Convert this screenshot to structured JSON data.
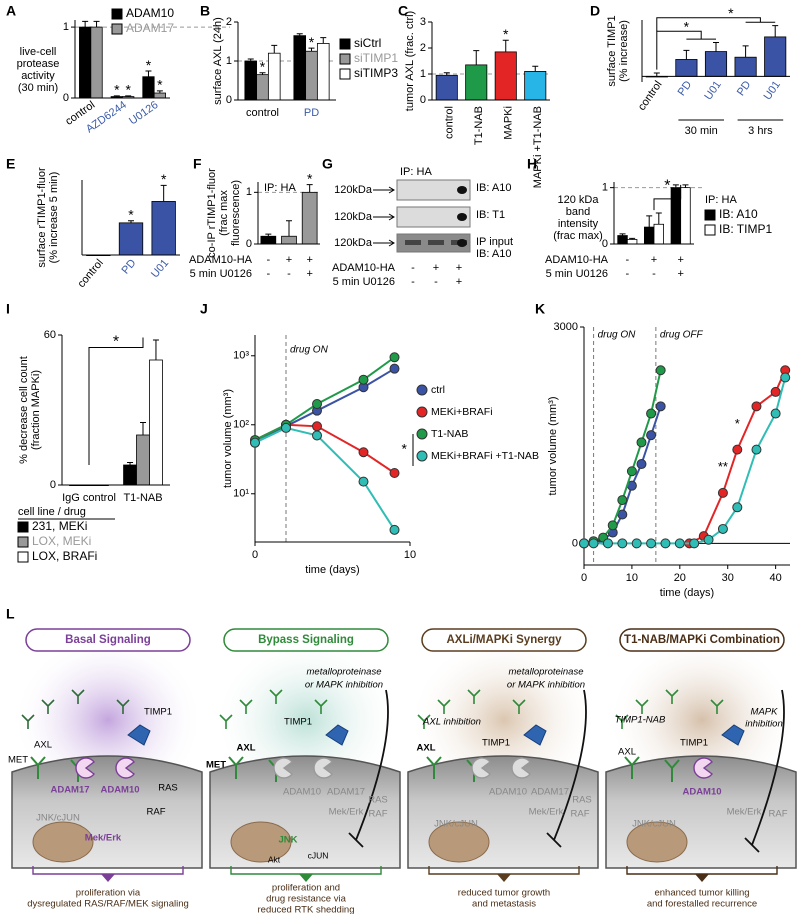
{
  "chart_data": [
    {
      "panel": "A",
      "type": "bar",
      "ylabel": [
        "live-cell",
        "protease",
        "activity",
        "(30 min)"
      ],
      "categories": [
        "control",
        "AZD6244",
        "U0126"
      ],
      "category_colors": [
        "#000000",
        "#3b5ba9",
        "#3b5ba9"
      ],
      "series": [
        {
          "name": "ADAM10",
          "color": "#000000",
          "values": [
            1,
            0.02,
            0.3
          ],
          "errors": [
            0.08,
            0.01,
            0.08
          ],
          "sig": [
            null,
            "*",
            "*"
          ]
        },
        {
          "name": "ADAM17",
          "color": "#999999",
          "values": [
            1,
            0.02,
            0.07
          ],
          "errors": [
            0.08,
            0.01,
            0.03
          ],
          "sig": [
            null,
            "*",
            "*"
          ]
        }
      ],
      "ylim": [
        0,
        1.1
      ],
      "yticks": [
        0,
        1
      ],
      "reference_line": 1
    },
    {
      "panel": "B",
      "type": "bar",
      "ylabel": [
        "surface AXL (24h)"
      ],
      "categories": [
        "control",
        "PD"
      ],
      "category_colors": [
        "#000000",
        "#3b5ba9"
      ],
      "series": [
        {
          "name": "siCtrl",
          "color": "#000000",
          "values": [
            1,
            1.65
          ],
          "errors": [
            0.05,
            0.05
          ]
        },
        {
          "name": "siTIMP1",
          "color": "#999999",
          "values": [
            0.65,
            1.25
          ],
          "errors": [
            0.05,
            0.08
          ],
          "sig": [
            "*",
            "*"
          ]
        },
        {
          "name": "siTIMP3",
          "color": "#ffffff",
          "values": [
            1.2,
            1.45
          ],
          "errors": [
            0.2,
            0.15
          ]
        }
      ],
      "ylim": [
        0,
        2
      ],
      "yticks": [
        0,
        1,
        2
      ],
      "reference_line": 1
    },
    {
      "panel": "C",
      "type": "bar",
      "ylabel": [
        "tumor AXL (frac. ctrl)"
      ],
      "categories": [
        "control",
        "T1-NAB",
        "MAPKi",
        "MAPKi +T1-NAB"
      ],
      "values": [
        0.95,
        1.35,
        1.85,
        1.1
      ],
      "errors": [
        0.1,
        0.55,
        0.45,
        0.2
      ],
      "sig": [
        null,
        null,
        "*",
        null
      ],
      "colors": [
        "#3a53a4",
        "#1f9a48",
        "#e32526",
        "#27b5e8"
      ],
      "ylim": [
        0,
        3
      ],
      "yticks": [
        0,
        1,
        2,
        3
      ],
      "reference_line": 1
    },
    {
      "panel": "D",
      "type": "bar",
      "ylabel": [
        "surface TIMP1",
        "(% increase)"
      ],
      "categories": [
        "control",
        "PD",
        "U01",
        "PD",
        "U01"
      ],
      "category_colors": [
        "#000000",
        "#3b5ba9",
        "#3b5ba9",
        "#3b5ba9",
        "#3b5ba9"
      ],
      "values": [
        0,
        15,
        22,
        17,
        35
      ],
      "errors": [
        3,
        8,
        8,
        10,
        10
      ],
      "colors": [
        "#3a53a4",
        "#3a53a4",
        "#3a53a4",
        "#3a53a4",
        "#3a53a4"
      ],
      "ylim": [
        -5,
        50
      ],
      "group_labels": [
        "30 min",
        "3 hrs"
      ],
      "annotations": [
        "*",
        "*"
      ]
    },
    {
      "panel": "E",
      "type": "bar",
      "ylabel": [
        "surface rTIMP1-fluor",
        "(% increase 5 min)"
      ],
      "categories": [
        "control",
        "PD",
        "U01"
      ],
      "category_colors": [
        "#000000",
        "#3b5ba9",
        "#3b5ba9"
      ],
      "values": [
        0,
        30,
        50
      ],
      "errors": [
        0,
        2,
        15
      ],
      "sig": [
        null,
        "*",
        "*"
      ],
      "colors": [
        "#3a53a4",
        "#3a53a4",
        "#3a53a4"
      ],
      "ylim": [
        0,
        70
      ]
    },
    {
      "panel": "F",
      "type": "bar",
      "ylabel": [
        "co-IP rTIMP1-fluor",
        "(frac max",
        "fluorescence)"
      ],
      "values": [
        0.15,
        0.15,
        1
      ],
      "errors": [
        0.04,
        0.3,
        0.15
      ],
      "sig": [
        null,
        null,
        "*"
      ],
      "colors": [
        "#000000",
        "#999999",
        "#999999"
      ],
      "ylim": [
        0,
        1.2
      ],
      "yticks": [
        0,
        1
      ],
      "reference_line": 1,
      "annotations": [
        "IP: HA"
      ],
      "conditions": [
        {
          "label": "ADAM10-HA",
          "values": [
            "-",
            "+",
            "+"
          ]
        },
        {
          "label": "5 min U0126",
          "values": [
            "-",
            "-",
            "+"
          ]
        }
      ]
    },
    {
      "panel": "H",
      "type": "bar",
      "ylabel": [
        "120 kDa",
        "band",
        "intensity",
        "(frac max)"
      ],
      "series": [
        {
          "name": "IB: A10",
          "color": "#000000",
          "values": [
            0.15,
            0.3,
            1
          ],
          "errors": [
            0.03,
            0.2,
            0.05
          ]
        },
        {
          "name": "IB: TIMP1",
          "color": "#ffffff",
          "values": [
            0.08,
            0.35,
            1
          ],
          "errors": [
            0.02,
            0.2,
            0.05
          ]
        }
      ],
      "legend_title": "IP: HA",
      "ylim": [
        0,
        1.1
      ],
      "yticks": [
        0,
        1
      ],
      "reference_line": 1,
      "annotations": [
        "*"
      ],
      "conditions": [
        {
          "label": "ADAM10-HA",
          "values": [
            "-",
            "+",
            "+"
          ]
        },
        {
          "label": "5 min U0126",
          "values": [
            "-",
            "-",
            "+"
          ]
        }
      ]
    },
    {
      "panel": "I",
      "type": "bar",
      "ylabel": [
        "% decrease cell count",
        "(fraction MAPKi)"
      ],
      "categories": [
        "IgG control",
        "T1-NAB"
      ],
      "series": [
        {
          "name": "231, MEKi",
          "color": "#000000",
          "values": [
            0,
            8
          ],
          "errors": [
            0,
            1
          ]
        },
        {
          "name": "LOX, MEKi",
          "color": "#999999",
          "values": [
            0,
            20
          ],
          "errors": [
            0,
            5
          ]
        },
        {
          "name": "LOX, BRAFi",
          "color": "#ffffff",
          "values": [
            0,
            50
          ],
          "errors": [
            0,
            8
          ]
        }
      ],
      "legend_title": "cell line / drug",
      "ylim": [
        0,
        60
      ],
      "yticks": [
        0,
        60
      ],
      "annotations": [
        "*"
      ]
    },
    {
      "panel": "J",
      "type": "line",
      "log_y": true,
      "xlabel": "time (days)",
      "ylabel": [
        "tumor volume (mm³)"
      ],
      "x": [
        0,
        2,
        4,
        7,
        9
      ],
      "series": [
        {
          "name": "ctrl",
          "color": "#3a53a4",
          "values": [
            55,
            95,
            160,
            350,
            650
          ]
        },
        {
          "name": "MEKi+BRAFi",
          "color": "#e32526",
          "values": [
            60,
            100,
            95,
            40,
            20
          ]
        },
        {
          "name": "T1-NAB",
          "color": "#1f9a48",
          "values": [
            60,
            100,
            200,
            450,
            950
          ]
        },
        {
          "name": "MEKi+BRAFi +T1-NAB",
          "color": "#2fbdb5",
          "values": [
            55,
            90,
            70,
            15,
            3
          ]
        }
      ],
      "xlim": [
        0,
        10
      ],
      "xticks": [
        0,
        10
      ],
      "ylim": [
        2,
        2000
      ],
      "yticks": [
        {
          "value": 10,
          "label": "10¹"
        },
        {
          "value": 100,
          "label": "10²"
        },
        {
          "value": 1000,
          "label": "10³"
        }
      ],
      "vlines": [
        2
      ],
      "annotations": [
        "drug ON",
        "*"
      ]
    },
    {
      "panel": "K",
      "type": "line",
      "xlabel": "time (days)",
      "ylabel": [
        "tumor volume (mm³)"
      ],
      "series": [
        {
          "color": "#3a53a4",
          "x": [
            0,
            2,
            4,
            6,
            8,
            10,
            12,
            14,
            16
          ],
          "values": [
            0,
            20,
            50,
            150,
            400,
            800,
            1100,
            1500,
            1900
          ]
        },
        {
          "color": "#1f9a48",
          "x": [
            0,
            2,
            4,
            6,
            8,
            10,
            12,
            14,
            16
          ],
          "values": [
            0,
            30,
            80,
            250,
            600,
            1000,
            1400,
            1800,
            2400
          ]
        },
        {
          "color": "#e32526",
          "x": [
            22,
            25,
            29,
            32,
            36,
            40,
            42
          ],
          "values": [
            0,
            100,
            700,
            1300,
            1900,
            2100,
            2400
          ]
        },
        {
          "color": "#2fbdb5",
          "x": [
            0,
            2,
            5,
            8,
            11,
            14,
            17,
            20,
            23,
            26,
            29,
            32,
            36,
            40,
            42
          ],
          "values": [
            0,
            0,
            0,
            0,
            0,
            0,
            0,
            0,
            0,
            50,
            200,
            500,
            1300,
            1800,
            2300
          ]
        }
      ],
      "xlim": [
        0,
        43
      ],
      "xticks": [
        0,
        10,
        20,
        30,
        40
      ],
      "ylim": [
        -300,
        3000
      ],
      "yticks": [
        0,
        3000
      ],
      "reference_line": 0,
      "vlines": [
        2,
        15
      ],
      "annotations": [
        "drug ON",
        "drug OFF",
        "**",
        "*"
      ]
    }
  ],
  "blot": {
    "panel": "G",
    "title": "IP: HA",
    "rows": [
      {
        "size": "120kDa",
        "label": [
          "IB: A10"
        ]
      },
      {
        "size": "120kDa",
        "label": [
          "IB: T1"
        ]
      },
      {
        "size": "120kDa",
        "label": [
          "IP input",
          "IB: A10"
        ]
      }
    ],
    "conditions": [
      {
        "label": "ADAM10-HA",
        "values": [
          "-",
          "+",
          "+"
        ]
      },
      {
        "label": "5 min U0126",
        "values": [
          "-",
          "-",
          "+"
        ]
      }
    ]
  },
  "diagram": {
    "panel": "L",
    "columns": [
      {
        "title": "Basal Signaling",
        "labels": [
          "TIMP1",
          "AXL",
          "MET",
          "ADAM17",
          "ADAM10",
          "RAS",
          "RAF",
          "Mek/Erk",
          "JNK/cJUN"
        ],
        "caption": [
          "proliferation via",
          "dysregulated RAS/RAF/MEK signaling"
        ]
      },
      {
        "title": "Bypass Signaling",
        "labels": [
          "metalloproteinase",
          "or MAPK inhibition",
          "TIMP1",
          "AXL",
          "MET",
          "ADAM10",
          "ADAM17",
          "RAS",
          "Mek/Erk",
          "RAF",
          "JNK",
          "Akt",
          "cJUN"
        ],
        "caption": [
          "proliferation and",
          "drug resistance via",
          "reduced RTK shedding"
        ]
      },
      {
        "title": "AXLi/MAPKi Synergy",
        "labels": [
          "metalloproteinase",
          "or MAPK inhibition",
          "AXL inhibition",
          "AXL",
          "TIMP1",
          "ADAM10",
          "ADAM17",
          "RAS",
          "Mek/Erk",
          "RAF",
          "JNK/cJUN"
        ],
        "caption": [
          "reduced tumor growth",
          "and metastasis"
        ]
      },
      {
        "title": "T1-NAB/MAPKi Combination",
        "labels": [
          "TIMP1-NAB",
          "TIMP1",
          "MAPK",
          "inhibition",
          "AXL",
          "ADAM10",
          "Mek/Erk",
          "RAF",
          "JNK/cJUN"
        ],
        "caption": [
          "enhanced tumor killing",
          "and forestalled recurrence"
        ]
      }
    ]
  }
}
